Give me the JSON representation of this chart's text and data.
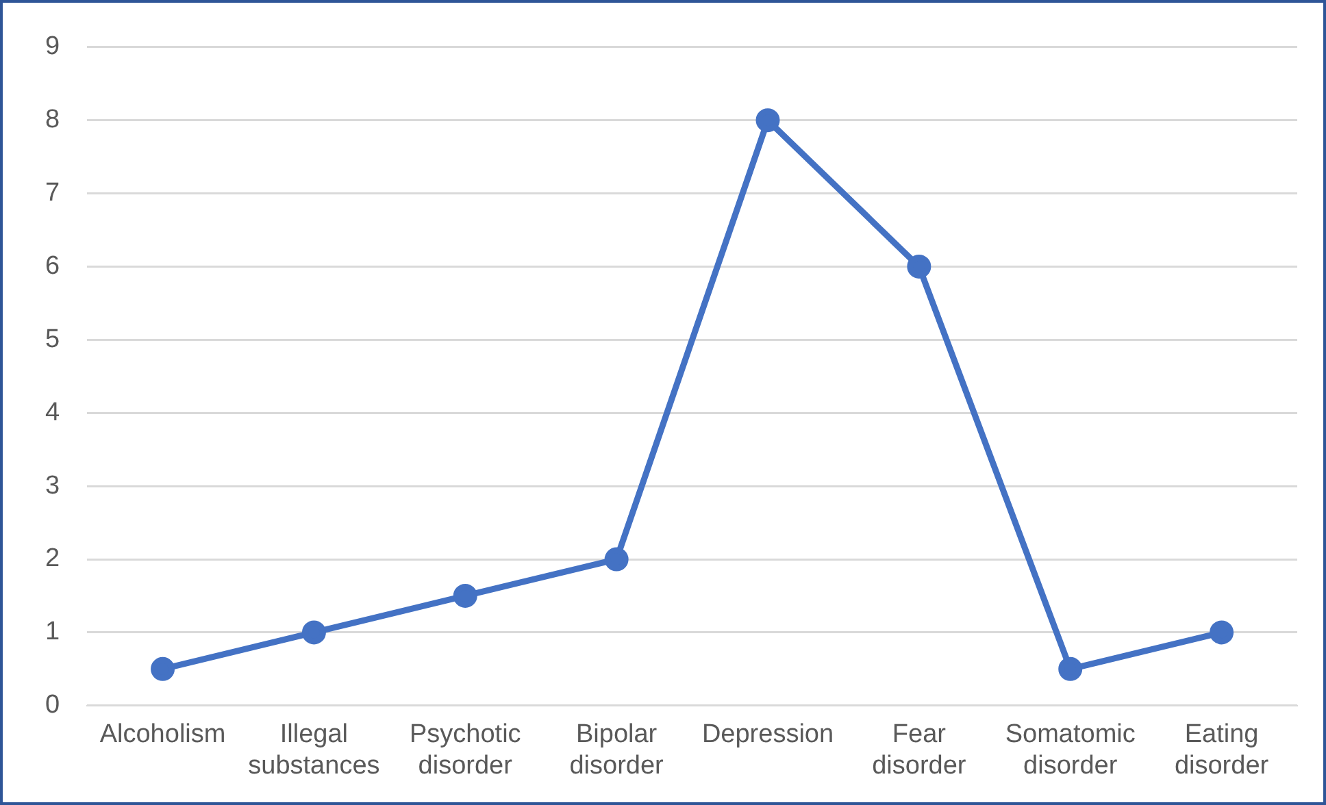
{
  "chart_data": {
    "type": "line",
    "categories": [
      "Alcoholism",
      "Illegal substances",
      "Psychotic disorder",
      "Bipolar disorder",
      "Depression",
      "Fear disorder",
      "Somatomic disorder",
      "Eating disorder"
    ],
    "series": [
      {
        "color": "#4472c4",
        "values": [
          0.5,
          1,
          1.5,
          2,
          8,
          6,
          0.5,
          1
        ]
      }
    ],
    "ylim": [
      0,
      9
    ],
    "yticks": [
      0,
      1,
      2,
      3,
      4,
      5,
      6,
      7,
      8,
      9
    ],
    "grid": "y",
    "legend": false,
    "marker": "circle",
    "line_style": "solid"
  }
}
